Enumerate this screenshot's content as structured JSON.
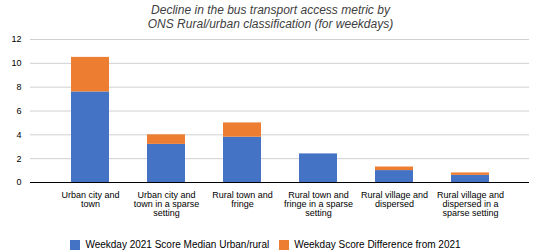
{
  "chart_data": {
    "type": "bar",
    "title": "Decline in the bus transport access metric by\nONS Rural/urban classification (for weekdays)",
    "categories": [
      "Urban city and\ntown",
      "Urban city and\ntown in a sparse\nsetting",
      "Rural town and\nfringe",
      "Rural town and\nfringe in a sparse\nsetting",
      "Rural village and\ndispersed",
      "Rural village and\ndispersed in a\nsparse setting"
    ],
    "series": [
      {
        "name": "Weekday 2021 Score Median Urban/rural",
        "color": "#4472C4",
        "values": [
          7.6,
          3.2,
          3.8,
          2.4,
          1.0,
          0.6
        ]
      },
      {
        "name": "Weekday Score Difference from 2021",
        "color": "#ED7D31",
        "values": [
          2.9,
          0.8,
          1.2,
          0.0,
          0.3,
          0.2
        ]
      }
    ],
    "stacked": true,
    "ylim": [
      0,
      12
    ],
    "yticks": [
      0,
      2,
      4,
      6,
      8,
      10,
      12
    ],
    "grid": true,
    "legend": "bottom"
  }
}
